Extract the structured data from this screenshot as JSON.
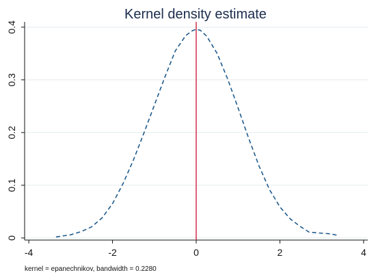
{
  "chart_data": {
    "type": "line",
    "title": "Kernel density estimate",
    "note": "kernel = epanechnikov, bandwidth = 0.2280",
    "xlabel": "",
    "ylabel": "",
    "xlim": [
      -4.1,
      4.1
    ],
    "ylim": [
      -0.004,
      0.41
    ],
    "xticks": [
      -4,
      -2,
      0,
      2,
      4
    ],
    "xtick_labels": [
      "-4",
      "-2",
      "0",
      "2",
      "4"
    ],
    "yticks": [
      0,
      0.1,
      0.2,
      0.3,
      0.4
    ],
    "ytick_labels": [
      "0",
      "0.1",
      "0.2",
      "0.3",
      "0.4"
    ],
    "grid": true,
    "reference_line": {
      "x": 0,
      "color": "#c8102e"
    },
    "series": [
      {
        "style": "dashed",
        "color": "#1f5a8c",
        "x": [
          -3.35,
          -3.0,
          -2.75,
          -2.5,
          -2.25,
          -2.0,
          -1.75,
          -1.5,
          -1.25,
          -1.0,
          -0.75,
          -0.5,
          -0.25,
          -0.1,
          0.0,
          0.1,
          0.25,
          0.5,
          0.75,
          1.0,
          1.25,
          1.5,
          1.75,
          2.0,
          2.25,
          2.5,
          2.7,
          3.0,
          3.2,
          3.38
        ],
        "y": [
          0.002,
          0.006,
          0.012,
          0.021,
          0.038,
          0.065,
          0.103,
          0.148,
          0.199,
          0.252,
          0.305,
          0.355,
          0.384,
          0.393,
          0.396,
          0.394,
          0.383,
          0.35,
          0.302,
          0.247,
          0.19,
          0.137,
          0.092,
          0.059,
          0.036,
          0.021,
          0.011,
          0.009,
          0.008,
          0.005
        ]
      }
    ],
    "colors": {
      "title": "#1a2b4c",
      "grid": "#e3ecef",
      "axis": "#111111"
    }
  }
}
